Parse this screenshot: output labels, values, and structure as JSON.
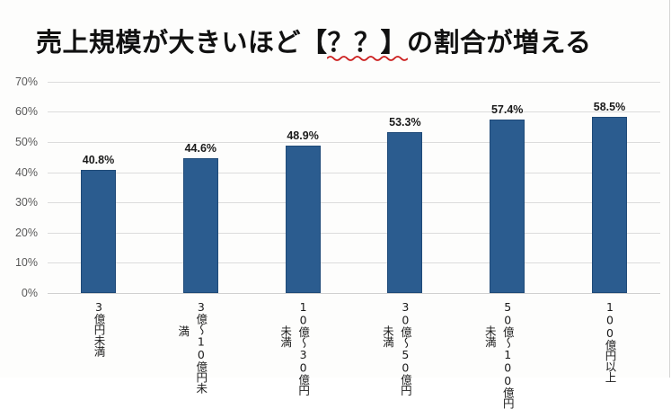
{
  "title": {
    "prefix": "売上規模が大きいほど",
    "blank": "【？？】",
    "suffix": "の割合が増える",
    "underline_color": "#cc1f1f"
  },
  "colors": {
    "bar": "#2b5c8f",
    "bar_border": "#1f4a78",
    "gridline": "#dcdcdc",
    "axis_text": "#595959",
    "label_text": "#1a1a1a"
  },
  "y_axis": {
    "ticks": [
      "70%",
      "60%",
      "50%",
      "40%",
      "30%",
      "20%",
      "10%",
      "0%"
    ]
  },
  "chart_data": {
    "type": "bar",
    "title": "売上規模が大きいほど【？？】の割合が増える",
    "xlabel": "",
    "ylabel": "",
    "ylim": [
      0,
      70
    ],
    "y_ticks": [
      0,
      10,
      20,
      30,
      40,
      50,
      60,
      70
    ],
    "y_tick_labels": [
      "0%",
      "10%",
      "20%",
      "30%",
      "40%",
      "50%",
      "60%",
      "70%"
    ],
    "grid": true,
    "legend": null,
    "categories": [
      "3億円未満",
      "3億～10億円未満",
      "10億～30億円未満",
      "30億～50億円未満",
      "50億～100億円未満",
      "100億円以上"
    ],
    "values": [
      40.8,
      44.6,
      48.9,
      53.3,
      57.4,
      58.5
    ],
    "data_labels": [
      "40.8%",
      "44.6%",
      "48.9%",
      "53.3%",
      "57.4%",
      "58.5%"
    ]
  },
  "bars": [
    {
      "value": 40.8,
      "label": "40.8%",
      "cat_line1": "3億円未満",
      "cat_line2": ""
    },
    {
      "value": 44.6,
      "label": "44.6%",
      "cat_line1": "3億～10億円未",
      "cat_line2": "満"
    },
    {
      "value": 48.9,
      "label": "48.9%",
      "cat_line1": "10億～30億円",
      "cat_line2": "未満"
    },
    {
      "value": 53.3,
      "label": "53.3%",
      "cat_line1": "30億～50億円",
      "cat_line2": "未満"
    },
    {
      "value": 57.4,
      "label": "57.4%",
      "cat_line1": "50億～100億円",
      "cat_line2": "未満"
    },
    {
      "value": 58.5,
      "label": "58.5%",
      "cat_line1": "100億円以上",
      "cat_line2": ""
    }
  ]
}
